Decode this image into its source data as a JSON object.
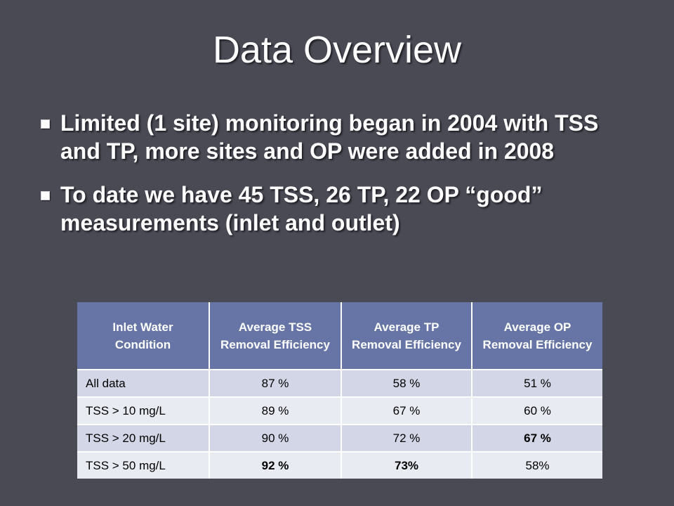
{
  "slide": {
    "title": "Data Overview",
    "bullets": [
      "Limited (1 site) monitoring began in 2004 with TSS and TP, more sites and OP were added in 2008",
      "To date we have 45 TSS, 26 TP, 22 OP “good” measurements (inlet and outlet)"
    ]
  },
  "table": {
    "headers": [
      "Inlet Water Condition",
      "Average TSS Removal Efficiency",
      "Average TP Removal Efficiency",
      "Average OP Removal Efficiency"
    ],
    "rows": [
      [
        "All data",
        "87 %",
        "58 %",
        "51 %"
      ],
      [
        "TSS > 10 mg/L",
        "89 %",
        "67 %",
        "60 %"
      ],
      [
        "TSS > 20 mg/L",
        "90 %",
        "72 %",
        "67 %"
      ],
      [
        "TSS > 50 mg/L",
        "92 %",
        "73%",
        "58%"
      ]
    ]
  },
  "colors": {
    "background": "#4a4a55",
    "header_fill": "#6775a6",
    "row_odd": "#d3d6e6",
    "row_even": "#e9ebf2"
  },
  "icons": {
    "bullet": "square-bullet-icon"
  }
}
